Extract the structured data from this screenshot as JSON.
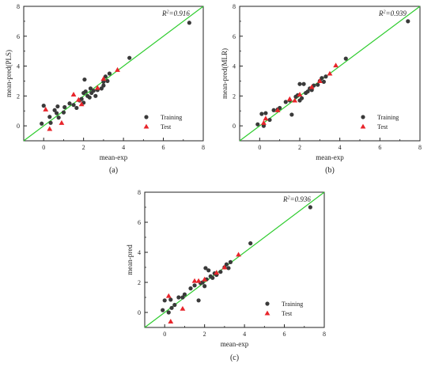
{
  "chart_data": [
    {
      "type": "scatter",
      "panel_label": "(a)",
      "xlabel": "mean-exp",
      "ylabel": "mean-pred(PLS)",
      "annotation": {
        "prefix": "R",
        "sup": "2",
        "value": "=0.916"
      },
      "xlim": [
        -1,
        8
      ],
      "ylim": [
        -1,
        8
      ],
      "xticks": [
        "0",
        "2",
        "4",
        "6",
        "8"
      ],
      "yticks": [
        "0",
        "2",
        "4",
        "6",
        "8"
      ],
      "reference_line": {
        "from": [
          -1,
          -1
        ],
        "to": [
          8,
          8
        ],
        "color": "#2ecc2e"
      },
      "legend": {
        "position": "bottom-right"
      },
      "series": [
        {
          "name": "Training",
          "marker": "circle",
          "color": "#3a3a3a",
          "points": [
            [
              -0.1,
              0.15
            ],
            [
              0.0,
              1.35
            ],
            [
              0.3,
              0.6
            ],
            [
              0.35,
              0.2
            ],
            [
              0.55,
              1.05
            ],
            [
              0.65,
              0.85
            ],
            [
              0.7,
              1.3
            ],
            [
              0.75,
              0.55
            ],
            [
              1.0,
              0.9
            ],
            [
              1.05,
              1.25
            ],
            [
              1.3,
              1.5
            ],
            [
              1.5,
              1.4
            ],
            [
              1.65,
              1.2
            ],
            [
              1.8,
              1.7
            ],
            [
              1.9,
              1.8
            ],
            [
              2.0,
              1.55
            ],
            [
              2.0,
              2.2
            ],
            [
              2.05,
              3.1
            ],
            [
              2.1,
              2.3
            ],
            [
              2.2,
              2.0
            ],
            [
              2.3,
              1.9
            ],
            [
              2.35,
              2.5
            ],
            [
              2.4,
              2.2
            ],
            [
              2.5,
              2.35
            ],
            [
              2.6,
              2.0
            ],
            [
              2.7,
              2.4
            ],
            [
              2.9,
              2.5
            ],
            [
              3.0,
              2.7
            ],
            [
              3.0,
              2.95
            ],
            [
              3.1,
              3.3
            ],
            [
              3.2,
              3.0
            ],
            [
              3.3,
              3.5
            ],
            [
              4.3,
              4.55
            ],
            [
              7.3,
              6.9
            ]
          ]
        },
        {
          "name": "Test",
          "marker": "triangle",
          "color": "#e8252b",
          "points": [
            [
              0.1,
              1.1
            ],
            [
              0.3,
              -0.2
            ],
            [
              0.9,
              0.2
            ],
            [
              1.5,
              2.1
            ],
            [
              1.75,
              1.75
            ],
            [
              1.9,
              1.45
            ],
            [
              2.7,
              2.55
            ],
            [
              3.0,
              3.15
            ],
            [
              3.7,
              3.75
            ]
          ]
        }
      ]
    },
    {
      "type": "scatter",
      "panel_label": "(b)",
      "xlabel": "mean-exp",
      "ylabel": "mean-pred(MLR)",
      "annotation": {
        "prefix": "R",
        "sup": "2",
        "value": "=0.939"
      },
      "xlim": [
        -1,
        8
      ],
      "ylim": [
        -1,
        8
      ],
      "xticks": [
        "0",
        "2",
        "4",
        "6",
        "8"
      ],
      "yticks": [
        "0",
        "2",
        "4",
        "6",
        "8"
      ],
      "reference_line": {
        "from": [
          -1,
          -1
        ],
        "to": [
          8,
          8
        ],
        "color": "#2ecc2e"
      },
      "legend": {
        "position": "bottom-right"
      },
      "series": [
        {
          "name": "Training",
          "marker": "circle",
          "color": "#3a3a3a",
          "points": [
            [
              -0.1,
              0.1
            ],
            [
              0.1,
              0.8
            ],
            [
              0.2,
              0.0
            ],
            [
              0.3,
              0.85
            ],
            [
              0.5,
              0.4
            ],
            [
              0.7,
              1.05
            ],
            [
              0.9,
              1.1
            ],
            [
              1.0,
              1.2
            ],
            [
              1.3,
              1.6
            ],
            [
              1.5,
              1.7
            ],
            [
              1.6,
              0.75
            ],
            [
              1.8,
              1.95
            ],
            [
              1.9,
              2.05
            ],
            [
              2.0,
              1.7
            ],
            [
              2.0,
              2.8
            ],
            [
              2.1,
              1.85
            ],
            [
              2.2,
              2.8
            ],
            [
              2.3,
              2.2
            ],
            [
              2.4,
              2.3
            ],
            [
              2.5,
              2.5
            ],
            [
              2.6,
              2.4
            ],
            [
              2.7,
              2.7
            ],
            [
              2.9,
              2.75
            ],
            [
              3.0,
              3.0
            ],
            [
              3.1,
              3.2
            ],
            [
              3.2,
              2.95
            ],
            [
              3.3,
              3.3
            ],
            [
              4.3,
              4.5
            ],
            [
              7.4,
              7.0
            ]
          ]
        },
        {
          "name": "Test",
          "marker": "triangle",
          "color": "#e8252b",
          "points": [
            [
              0.2,
              0.2
            ],
            [
              0.3,
              0.5
            ],
            [
              0.9,
              1.05
            ],
            [
              1.5,
              1.8
            ],
            [
              1.75,
              1.7
            ],
            [
              2.0,
              2.1
            ],
            [
              2.6,
              2.6
            ],
            [
              3.0,
              3.0
            ],
            [
              3.5,
              3.5
            ],
            [
              3.8,
              4.05
            ]
          ]
        }
      ]
    },
    {
      "type": "scatter",
      "panel_label": "(c)",
      "xlabel": "mean-exp",
      "ylabel": "mean-pred",
      "annotation": {
        "prefix": "R",
        "sup": "2",
        "value": "=0.936"
      },
      "xlim": [
        -1,
        8
      ],
      "ylim": [
        -1,
        8
      ],
      "xticks": [
        "0",
        "2",
        "4",
        "6",
        "8"
      ],
      "yticks": [
        "0",
        "2",
        "4",
        "6",
        "8"
      ],
      "reference_line": {
        "from": [
          -1,
          -1
        ],
        "to": [
          8,
          8
        ],
        "color": "#2ecc2e"
      },
      "legend": {
        "position": "bottom-right"
      },
      "series": [
        {
          "name": "Training",
          "marker": "circle",
          "color": "#3a3a3a",
          "points": [
            [
              -0.1,
              0.15
            ],
            [
              0.0,
              0.8
            ],
            [
              0.2,
              0.0
            ],
            [
              0.3,
              0.85
            ],
            [
              0.35,
              0.3
            ],
            [
              0.5,
              0.5
            ],
            [
              0.7,
              1.0
            ],
            [
              0.9,
              1.0
            ],
            [
              1.0,
              1.2
            ],
            [
              1.3,
              1.6
            ],
            [
              1.5,
              1.8
            ],
            [
              1.7,
              0.8
            ],
            [
              1.8,
              1.95
            ],
            [
              1.9,
              2.0
            ],
            [
              2.0,
              1.75
            ],
            [
              2.05,
              2.95
            ],
            [
              2.1,
              2.2
            ],
            [
              2.2,
              2.8
            ],
            [
              2.3,
              2.4
            ],
            [
              2.4,
              2.3
            ],
            [
              2.5,
              2.6
            ],
            [
              2.6,
              2.5
            ],
            [
              2.8,
              2.7
            ],
            [
              3.0,
              3.0
            ],
            [
              3.1,
              3.2
            ],
            [
              3.2,
              2.95
            ],
            [
              3.3,
              3.35
            ],
            [
              4.3,
              4.6
            ],
            [
              7.3,
              7.0
            ]
          ]
        },
        {
          "name": "Test",
          "marker": "triangle",
          "color": "#e8252b",
          "points": [
            [
              0.2,
              1.1
            ],
            [
              0.3,
              -0.6
            ],
            [
              0.9,
              0.25
            ],
            [
              1.5,
              2.1
            ],
            [
              1.7,
              2.1
            ],
            [
              2.0,
              2.2
            ],
            [
              2.6,
              2.65
            ],
            [
              3.0,
              3.0
            ],
            [
              3.7,
              3.85
            ]
          ]
        }
      ]
    }
  ]
}
